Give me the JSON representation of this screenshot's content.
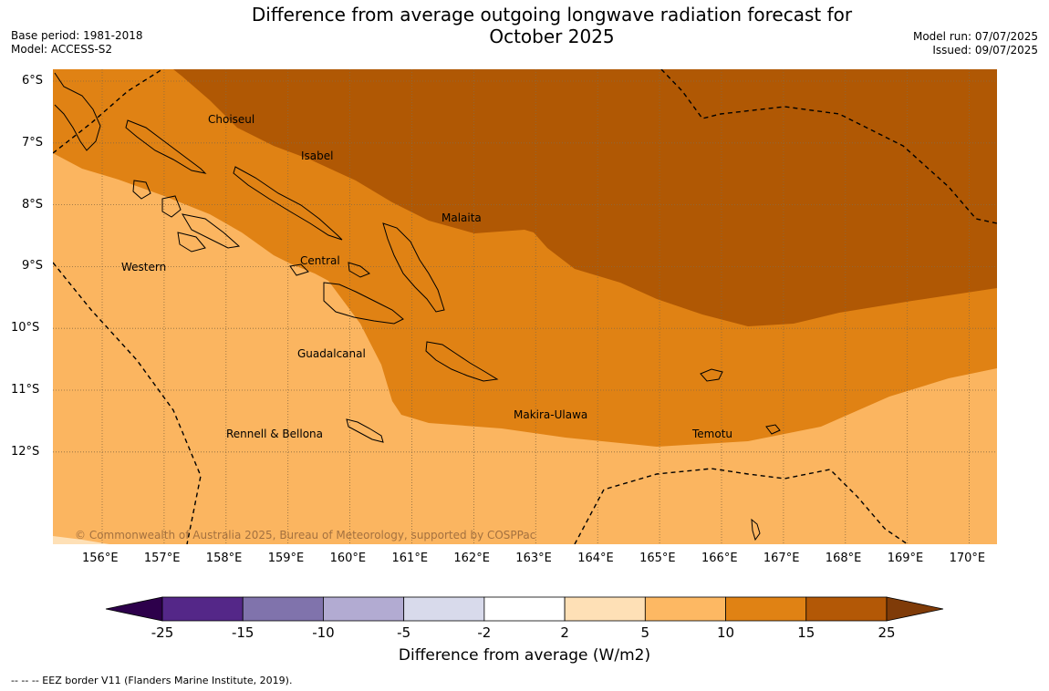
{
  "header": {
    "title_line1": "Difference from average outgoing longwave radiation forecast for",
    "title_line2": "October 2025",
    "base_period": "Base period: 1981-2018",
    "model": "Model: ACCESS-S2",
    "model_run": "Model run: 07/07/2025",
    "issued": "Issued: 09/07/2025"
  },
  "map": {
    "lat_labels": [
      "6°S",
      "7°S",
      "8°S",
      "9°S",
      "10°S",
      "11°S",
      "12°S"
    ],
    "lon_labels": [
      "156°E",
      "157°E",
      "158°E",
      "159°E",
      "160°E",
      "161°E",
      "162°E",
      "163°E",
      "164°E",
      "165°E",
      "166°E",
      "167°E",
      "168°E",
      "169°E",
      "170°E"
    ],
    "region_labels": [
      "Choiseul",
      "Isabel",
      "Malaita",
      "Western",
      "Central",
      "Guadalcanal",
      "Makira-Ulawa",
      "Temotu",
      "Rennell & Bellona"
    ],
    "copyright": "© Commonwealth of Australia 2025, Bureau of Meteorology, supported by COSPPac",
    "colors": {
      "c_15_25": "#b05804",
      "c_10_15": "#e08214",
      "c_5_10": "#fbb560",
      "c_2_5": "#fee0b6"
    }
  },
  "colorbar": {
    "ticks": [
      "-25",
      "-15",
      "-10",
      "-5",
      "-2",
      "2",
      "5",
      "10",
      "15",
      "25"
    ],
    "colors": [
      "#2d004b",
      "#542788",
      "#8073ac",
      "#b2abd2",
      "#d8daeb",
      "#ffffff",
      "#fee0b6",
      "#fdb863",
      "#e08214",
      "#b35806",
      "#7f3b08"
    ],
    "title": "Difference from average (W/m2)"
  },
  "legend_note": "--  --  -- EEZ border V11 (Flanders Marine Institute, 2019)."
}
